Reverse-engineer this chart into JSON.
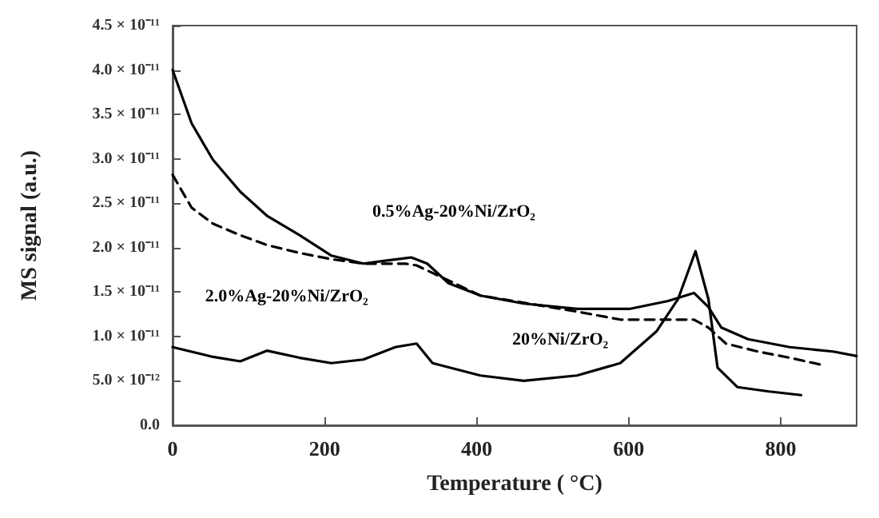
{
  "chart_data": {
    "type": "line",
    "xlabel": "Temperature ( °C)",
    "ylabel": "MS signal (a.u.)",
    "xlim": [
      0,
      900
    ],
    "xticks": [
      0,
      200,
      400,
      600,
      800
    ],
    "ylim": [
      0,
      4.5e-11
    ],
    "yticks": [
      {
        "value": 0,
        "label": "0.0"
      },
      {
        "value": 5e-12,
        "label": "5.0 × 10⁻¹²"
      },
      {
        "value": 1e-11,
        "label": "1.0 × 10⁻¹¹"
      },
      {
        "value": 1.5e-11,
        "label": "1.5 × 10⁻¹¹"
      },
      {
        "value": 2e-11,
        "label": "2.0 × 10⁻¹¹"
      },
      {
        "value": 2.5e-11,
        "label": "2.5 × 10⁻¹¹"
      },
      {
        "value": 3e-11,
        "label": "3.0 × 10⁻¹¹"
      },
      {
        "value": 3.5e-11,
        "label": "3.5 × 10⁻¹¹"
      },
      {
        "value": 4e-11,
        "label": "4.0 × 10⁻¹¹"
      },
      {
        "value": 4.5e-11,
        "label": "4.5 × 10⁻¹¹"
      }
    ],
    "grid": false,
    "legend": false,
    "marker": "none",
    "series": [
      {
        "name": "0.5%Ag-20%Ni/ZrO₂",
        "color": "#000000",
        "line_style": "solid",
        "x": [
          0,
          25,
          53,
          89,
          124,
          167,
          209,
          251,
          278,
          314,
          335,
          363,
          405,
          462,
          532,
          601,
          652,
          686,
          705,
          722,
          757,
          812,
          869,
          900
        ],
        "values": [
          4e-11,
          3.4e-11,
          2.99e-11,
          2.63e-11,
          2.36e-11,
          2.14e-11,
          1.91e-11,
          1.82e-11,
          1.85e-11,
          1.89e-11,
          1.82e-11,
          1.6e-11,
          1.46e-11,
          1.37e-11,
          1.31e-11,
          1.31e-11,
          1.4e-11,
          1.49e-11,
          1.33e-11,
          1.1e-11,
          9.7e-12,
          8.8e-12,
          8.3e-12,
          7.8e-12
        ]
      },
      {
        "name": "2.0%Ag-20%Ni/ZrO₂",
        "color": "#000000",
        "line_style": "dashed",
        "x": [
          0,
          25,
          53,
          89,
          124,
          167,
          209,
          251,
          306,
          321,
          405,
          532,
          589,
          643,
          686,
          705,
          728,
          770,
          812,
          854
        ],
        "values": [
          2.82e-11,
          2.45e-11,
          2.27e-11,
          2.14e-11,
          2.03e-11,
          1.94e-11,
          1.87e-11,
          1.82e-11,
          1.82e-11,
          1.8e-11,
          1.46e-11,
          1.28e-11,
          1.19e-11,
          1.19e-11,
          1.19e-11,
          1.1e-11,
          9.2e-12,
          8.3e-12,
          7.6e-12,
          6.8e-12
        ]
      },
      {
        "name": "20%Ni/ZrO₂",
        "color": "#000000",
        "line_style": "solid",
        "x": [
          0,
          53,
          89,
          124,
          167,
          209,
          251,
          293,
          321,
          342,
          405,
          462,
          532,
          589,
          637,
          665,
          688,
          705,
          717,
          743,
          785,
          827
        ],
        "values": [
          8.8e-12,
          7.7e-12,
          7.2e-12,
          8.4e-12,
          7.6e-12,
          7e-12,
          7.4e-12,
          8.8e-12,
          9.2e-12,
          7e-12,
          5.6e-12,
          5e-12,
          5.6e-12,
          7e-12,
          1.06e-11,
          1.42e-11,
          1.96e-11,
          1.42e-11,
          6.5e-12,
          4.3e-12,
          3.8e-12,
          3.4e-12
        ]
      }
    ]
  }
}
